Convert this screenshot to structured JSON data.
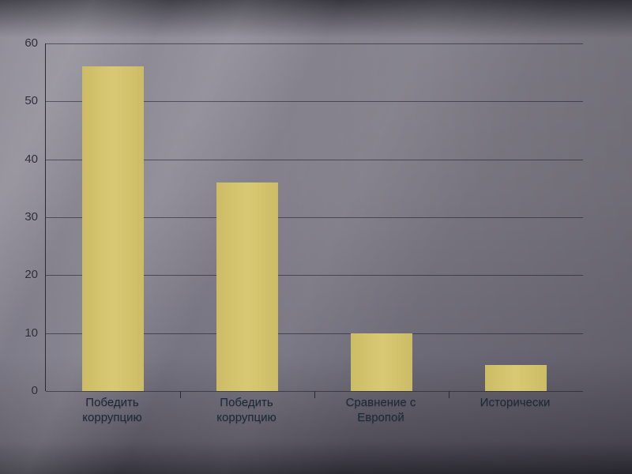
{
  "slide": {
    "background_base": "#7c7985",
    "kind": "presentation-slide-bar-chart"
  },
  "chart_data": {
    "type": "bar",
    "categories": [
      "Победить\nкоррупцию",
      "Победить\nкоррупцию",
      "Сравнение с\nЕвропой",
      "Исторически"
    ],
    "values": [
      56,
      36,
      10,
      4.5
    ],
    "title": "",
    "xlabel": "",
    "ylabel": "",
    "ylim": [
      0,
      60
    ],
    "yticks": [
      0,
      10,
      20,
      30,
      40,
      50,
      60
    ],
    "grid": "horizontal",
    "legend_position": "none",
    "bar_color": "#d3c36c",
    "gridline_color": "#1c1a24",
    "tick_label_color": "#2f2d37",
    "category_label_color": "#1d2a3a"
  }
}
